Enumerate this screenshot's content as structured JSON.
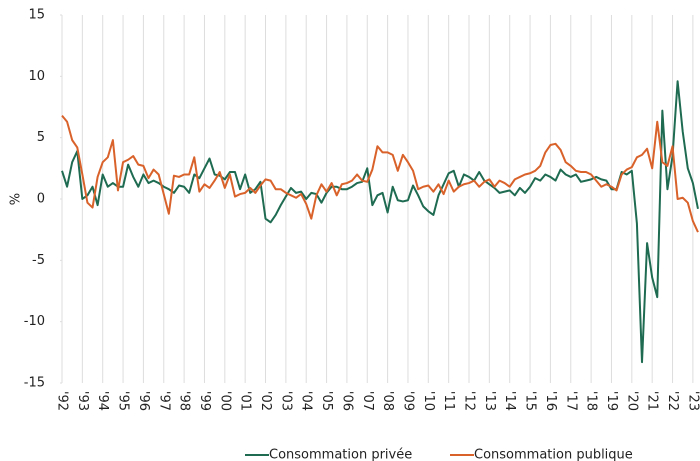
{
  "chart_data": {
    "type": "line",
    "ylabel": "%",
    "xlim": [
      1992,
      2023.35
    ],
    "ylim": [
      -15,
      15
    ],
    "yticks": [
      -15,
      -10,
      -5,
      0,
      5,
      10,
      15
    ],
    "xticks": [
      {
        "value": 1992,
        "label": "'92"
      },
      {
        "value": 1993,
        "label": "'93"
      },
      {
        "value": 1994,
        "label": "'94"
      },
      {
        "value": 1995,
        "label": "'95"
      },
      {
        "value": 1996,
        "label": "'96"
      },
      {
        "value": 1997,
        "label": "'97"
      },
      {
        "value": 1998,
        "label": "'98"
      },
      {
        "value": 1999,
        "label": "'99"
      },
      {
        "value": 2000,
        "label": "'00"
      },
      {
        "value": 2001,
        "label": "'01"
      },
      {
        "value": 2002,
        "label": "'02"
      },
      {
        "value": 2003,
        "label": "'03"
      },
      {
        "value": 2004,
        "label": "'04"
      },
      {
        "value": 2005,
        "label": "'05"
      },
      {
        "value": 2006,
        "label": "'06"
      },
      {
        "value": 2007,
        "label": "'07"
      },
      {
        "value": 2008,
        "label": "'08"
      },
      {
        "value": 2009,
        "label": "'09"
      },
      {
        "value": 2010,
        "label": "'10"
      },
      {
        "value": 2011,
        "label": "'11"
      },
      {
        "value": 2012,
        "label": "'12"
      },
      {
        "value": 2013,
        "label": "'13"
      },
      {
        "value": 2014,
        "label": "'14"
      },
      {
        "value": 2015,
        "label": "'15"
      },
      {
        "value": 2016,
        "label": "'16"
      },
      {
        "value": 2017,
        "label": "'17"
      },
      {
        "value": 2018,
        "label": "'18"
      },
      {
        "value": 2019,
        "label": "'19"
      },
      {
        "value": 2020,
        "label": "'20"
      },
      {
        "value": 2021,
        "label": "'21"
      },
      {
        "value": 2022,
        "label": "'22"
      },
      {
        "value": 2023,
        "label": "'23"
      }
    ],
    "grid": true,
    "x": [
      1992,
      1992.25,
      1992.5,
      1992.75,
      1993,
      1993.25,
      1993.5,
      1993.75,
      1994,
      1994.25,
      1994.5,
      1994.75,
      1995,
      1995.25,
      1995.5,
      1995.75,
      1996,
      1996.25,
      1996.5,
      1996.75,
      1997,
      1997.25,
      1997.5,
      1997.75,
      1998,
      1998.25,
      1998.5,
      1998.75,
      1999,
      1999.25,
      1999.5,
      1999.75,
      2000,
      2000.25,
      2000.5,
      2000.75,
      2001,
      2001.25,
      2001.5,
      2001.75,
      2002,
      2002.25,
      2002.5,
      2002.75,
      2003,
      2003.25,
      2003.5,
      2003.75,
      2004,
      2004.25,
      2004.5,
      2004.75,
      2005,
      2005.25,
      2005.5,
      2005.75,
      2006,
      2006.25,
      2006.5,
      2006.75,
      2007,
      2007.25,
      2007.5,
      2007.75,
      2008,
      2008.25,
      2008.5,
      2008.75,
      2009,
      2009.25,
      2009.5,
      2009.75,
      2010,
      2010.25,
      2010.5,
      2010.75,
      2011,
      2011.25,
      2011.5,
      2011.75,
      2012,
      2012.25,
      2012.5,
      2012.75,
      2013,
      2013.25,
      2013.5,
      2013.75,
      2014,
      2014.25,
      2014.5,
      2014.75,
      2015,
      2015.25,
      2015.5,
      2015.75,
      2016,
      2016.25,
      2016.5,
      2016.75,
      2017,
      2017.25,
      2017.5,
      2017.75,
      2018,
      2018.25,
      2018.5,
      2018.75,
      2019,
      2019.25,
      2019.5,
      2019.75,
      2020,
      2020.25,
      2020.5,
      2020.75,
      2021,
      2021.25,
      2021.5,
      2021.75,
      2022,
      2022.25,
      2022.5,
      2022.75,
      2023,
      2023.25
    ],
    "series": [
      {
        "name": "Consommation privée",
        "color": "#1e6b52",
        "values": [
          2.3,
          1.0,
          3.0,
          3.9,
          0.0,
          0.3,
          1.0,
          -0.5,
          2.0,
          1.0,
          1.3,
          1.0,
          1.0,
          2.8,
          1.8,
          1.0,
          2.0,
          1.3,
          1.5,
          1.3,
          1.0,
          0.8,
          0.5,
          1.1,
          1.0,
          0.5,
          2.0,
          1.7,
          2.5,
          3.3,
          2.0,
          1.9,
          1.6,
          2.2,
          2.2,
          0.8,
          2.0,
          0.5,
          0.8,
          1.4,
          -1.6,
          -1.9,
          -1.3,
          -0.5,
          0.2,
          0.9,
          0.5,
          0.6,
          0.0,
          0.5,
          0.4,
          -0.3,
          0.5,
          1.0,
          1.0,
          0.8,
          0.8,
          1.0,
          1.3,
          1.4,
          2.5,
          -0.5,
          0.3,
          0.5,
          -1.1,
          1.0,
          -0.1,
          -0.2,
          -0.1,
          1.1,
          0.3,
          -0.6,
          -1.0,
          -1.3,
          0.3,
          1.2,
          2.1,
          2.3,
          1.0,
          2.0,
          1.8,
          1.5,
          2.2,
          1.5,
          1.2,
          0.9,
          0.5,
          0.6,
          0.7,
          0.3,
          0.9,
          0.5,
          1.0,
          1.7,
          1.5,
          2.0,
          1.8,
          1.5,
          2.4,
          2.0,
          1.8,
          2.0,
          1.4,
          1.5,
          1.6,
          1.8,
          1.6,
          1.5,
          0.8,
          0.8,
          2.2,
          2.0,
          2.3,
          -2.0,
          -13.3,
          -3.6,
          -6.4,
          -8.0,
          7.2,
          0.8,
          3.5,
          9.6,
          5.5,
          2.5,
          1.3,
          -0.8
        ]
      },
      {
        "name": "Consommation publique",
        "color": "#d9622b",
        "values": [
          6.8,
          6.3,
          4.8,
          4.2,
          2.0,
          -0.3,
          -0.7,
          1.8,
          3.0,
          3.4,
          4.8,
          0.7,
          3.0,
          3.2,
          3.5,
          2.8,
          2.7,
          1.7,
          2.4,
          2.0,
          0.4,
          -1.2,
          1.9,
          1.8,
          2.0,
          2.0,
          3.4,
          0.6,
          1.2,
          0.9,
          1.5,
          2.2,
          0.9,
          2.0,
          0.2,
          0.4,
          0.5,
          0.9,
          0.5,
          1.1,
          1.6,
          1.5,
          0.8,
          0.8,
          0.5,
          0.3,
          0.1,
          0.4,
          -0.4,
          -1.6,
          0.3,
          1.2,
          0.6,
          1.3,
          0.3,
          1.2,
          1.3,
          1.5,
          2.0,
          1.5,
          1.4,
          2.4,
          4.3,
          3.8,
          3.8,
          3.6,
          2.3,
          3.6,
          3.0,
          2.3,
          0.8,
          1.0,
          1.1,
          0.6,
          1.2,
          0.4,
          1.5,
          0.6,
          1.0,
          1.2,
          1.3,
          1.5,
          1.0,
          1.4,
          1.6,
          1.0,
          1.5,
          1.3,
          1.0,
          1.6,
          1.8,
          2.0,
          2.1,
          2.3,
          2.7,
          3.8,
          4.4,
          4.5,
          4.0,
          3.0,
          2.7,
          2.3,
          2.2,
          2.2,
          2.0,
          1.5,
          1.0,
          1.2,
          1.0,
          0.7,
          2.0,
          2.4,
          2.6,
          3.4,
          3.6,
          4.1,
          2.5,
          6.3,
          3.0,
          2.7,
          4.3,
          0.0,
          0.1,
          -0.3,
          -1.8,
          -2.7
        ]
      }
    ]
  }
}
